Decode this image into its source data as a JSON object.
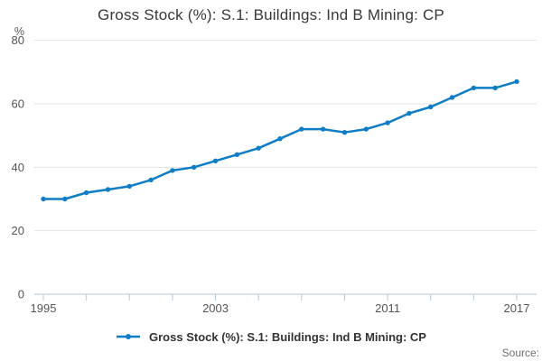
{
  "title": "Gross Stock (%): S.1: Buildings: Ind B Mining: CP",
  "y_axis": {
    "unit_label": "%",
    "ticks": [
      0,
      20,
      40,
      60,
      80
    ],
    "range": [
      0,
      80
    ]
  },
  "x_axis": {
    "range": [
      1995,
      2017
    ],
    "tick_interval_years": 2,
    "labels": [
      "1995",
      "2003",
      "2011",
      "2017"
    ],
    "label_years": [
      1995,
      2003,
      2011,
      2017
    ]
  },
  "chart_data": {
    "type": "line",
    "title": "Gross Stock (%): S.1: Buildings: Ind B Mining: CP",
    "x": [
      1995,
      1996,
      1997,
      1998,
      1999,
      2000,
      2001,
      2002,
      2003,
      2004,
      2005,
      2006,
      2007,
      2008,
      2009,
      2010,
      2011,
      2012,
      2013,
      2014,
      2015,
      2016,
      2017
    ],
    "series": [
      {
        "name": "Gross Stock (%): S.1: Buildings: Ind B Mining: CP",
        "values": [
          30,
          30,
          32,
          33,
          34,
          36,
          39,
          40,
          42,
          44,
          46,
          49,
          52,
          52,
          51,
          52,
          54,
          57,
          59,
          62,
          65,
          65,
          67
        ]
      }
    ],
    "xlabel": "",
    "ylabel": "%",
    "ylim": [
      0,
      80
    ],
    "grid": true,
    "legend_position": "bottom",
    "marker": "circle"
  },
  "legend": {
    "label": "Gross Stock (%): S.1: Buildings: Ind B Mining: CP",
    "marker": "line-dot"
  },
  "footer": {
    "source_label": "Source:"
  },
  "colors": {
    "line": "#0f7dc5",
    "grid": "#e2e2e2",
    "axis": "#b5c6d6",
    "tick_text": "#555555",
    "title_text": "#383838",
    "legend_text": "#333333",
    "source_text": "#707070"
  }
}
